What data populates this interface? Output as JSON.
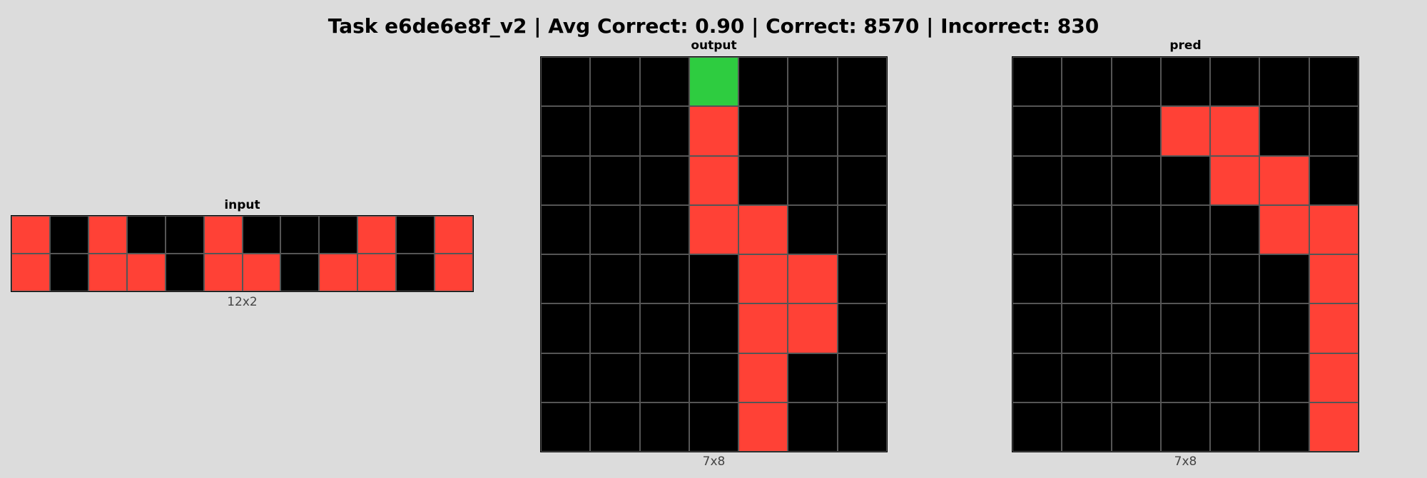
{
  "title": "Task e6de6e8f_v2 | Avg Correct: 0.90 | Correct: 8570 | Incorrect: 830",
  "colors": {
    "0": "#000000",
    "2": "#ff4136",
    "3": "#2ecc40"
  },
  "panels": {
    "input": {
      "label": "input",
      "size": "12x2",
      "grid": [
        [
          2,
          0,
          2,
          0,
          0,
          2,
          0,
          0,
          0,
          2,
          0,
          2
        ],
        [
          2,
          0,
          2,
          2,
          0,
          2,
          2,
          0,
          2,
          2,
          0,
          2
        ]
      ]
    },
    "output": {
      "label": "output",
      "size": "7x8",
      "grid": [
        [
          0,
          0,
          0,
          3,
          0,
          0,
          0
        ],
        [
          0,
          0,
          0,
          2,
          0,
          0,
          0
        ],
        [
          0,
          0,
          0,
          2,
          0,
          0,
          0
        ],
        [
          0,
          0,
          0,
          2,
          2,
          0,
          0
        ],
        [
          0,
          0,
          0,
          0,
          2,
          2,
          0
        ],
        [
          0,
          0,
          0,
          0,
          2,
          2,
          0
        ],
        [
          0,
          0,
          0,
          0,
          2,
          0,
          0
        ],
        [
          0,
          0,
          0,
          0,
          2,
          0,
          0
        ]
      ]
    },
    "pred": {
      "label": "pred",
      "size": "7x8",
      "grid": [
        [
          0,
          0,
          0,
          0,
          0,
          0,
          0
        ],
        [
          0,
          0,
          0,
          2,
          2,
          0,
          0
        ],
        [
          0,
          0,
          0,
          0,
          2,
          2,
          0
        ],
        [
          0,
          0,
          0,
          0,
          0,
          2,
          2
        ],
        [
          0,
          0,
          0,
          0,
          0,
          0,
          2
        ],
        [
          0,
          0,
          0,
          0,
          0,
          0,
          2
        ],
        [
          0,
          0,
          0,
          0,
          0,
          0,
          2
        ],
        [
          0,
          0,
          0,
          0,
          0,
          0,
          2
        ]
      ]
    }
  }
}
